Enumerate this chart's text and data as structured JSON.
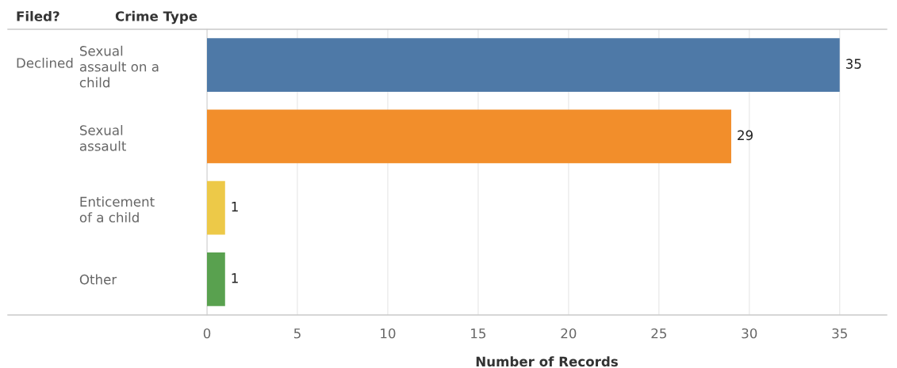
{
  "chart_data": {
    "type": "bar",
    "orientation": "horizontal",
    "ylabel": "Crime Type",
    "xlabel": "Number of Records",
    "categories": [
      "Sexual\nassault on a\nchild",
      "Sexual\nassault",
      "Enticement\nof a child",
      "Other"
    ],
    "values": [
      35,
      29,
      1,
      1
    ],
    "colors": [
      "#4e79a7",
      "#f28e2b",
      "#edc948",
      "#59a14f"
    ],
    "xlim": [
      0,
      37.6
    ],
    "xticks": [
      0,
      5,
      10,
      15,
      20,
      25,
      30,
      35
    ],
    "grid": "x",
    "data_labels": true,
    "legend": false,
    "annotations": [
      "Filed?",
      "Declined"
    ]
  }
}
